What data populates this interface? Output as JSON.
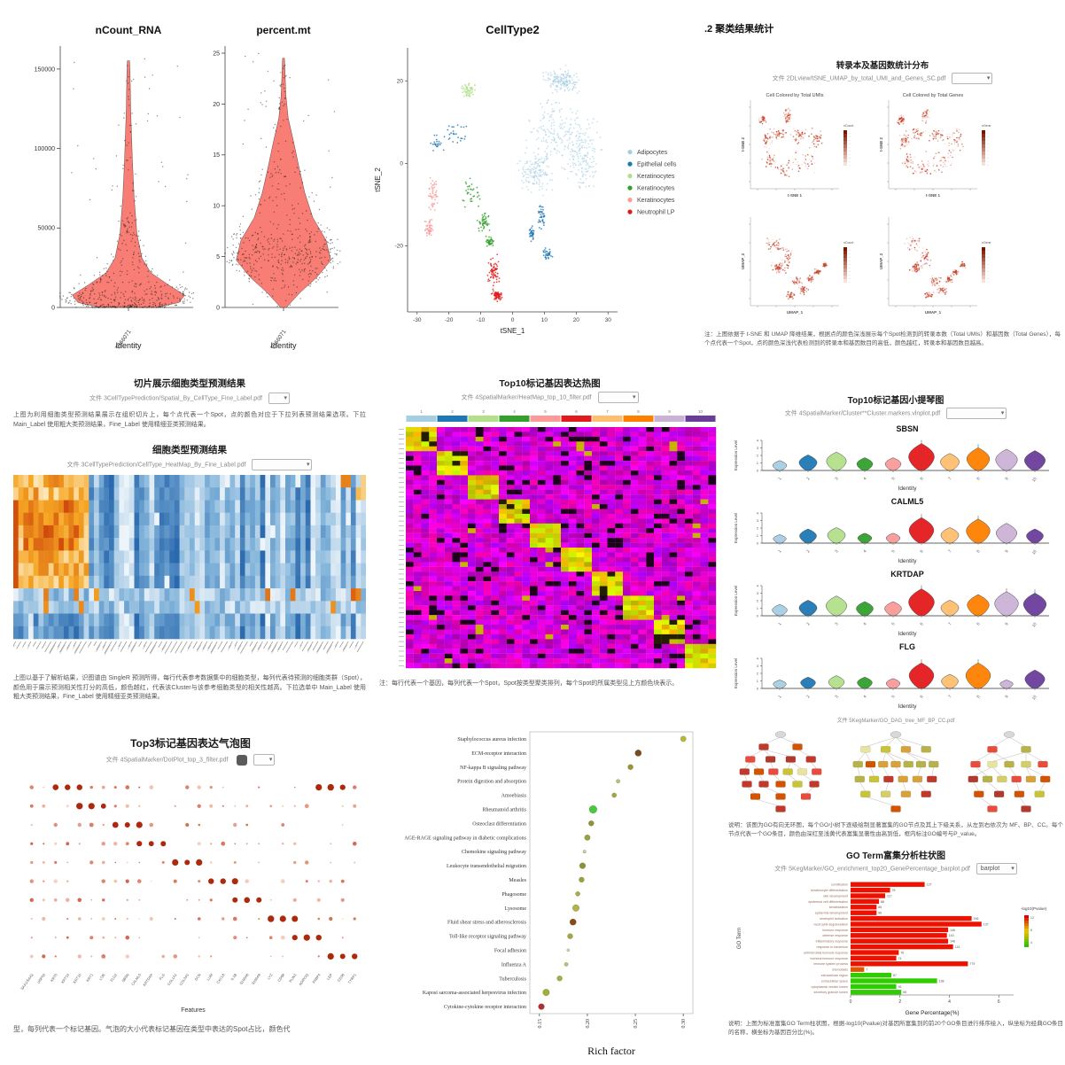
{
  "report": {
    "ui": {
      "chev": "▾"
    },
    "c": {
      "heading": ".2 聚类结果统计",
      "subtitle": "转录本及基因数统计分布",
      "file": "文件 2DLview/tSNE_UMAP_by_total_UMI_and_Genes_SC.pdf",
      "caption": "注：上图依据于 t-SNE 和 UMAP 降维结果，根据点的颜色深浅展示每个Spot检测到的转录本数（Total UMIs）和基因数（Total Genes），每个点代表一个Spot，点的颜色深浅代表检测到的转录本和基因数目的高低，颜色越红，转录本和基因数目越高。"
    },
    "d": {
      "title1": "切片展示细胞类型预测结果",
      "file1": "文件 3CellTypePrediction/Spatial_By_CellType_Fine_Label.pdf",
      "para1": "上图为利用细胞类型预测结果展示在组织切片上，每个点代表一个Spot，点的颜色对应于下拉列表预测结果选项。下拉 Main_Label 使用粗大类预测结果，Fine_Label 使用精细亚类预测结果。",
      "title2": "细胞类型预测结果",
      "file2": "文件 3CellTypePrediction/CellType_HeatMap_By_Fine_Label.pdf",
      "caption": "上图以基于了解析结果，识图谱由 SingleR 预测所得，每行代表参考数据集中的细胞类型，每列代表待预测的细胞类群（Spot），颜色用于展示预测相关性打分的高低，颜色越红，代表该Cluster与该参考细胞类型的相关性越高。下拉选单中 Main_Label 使用粗大类预测结果，Fine_Label 使用精细亚类预测结果。"
    },
    "e": {
      "title": "Top10标记基因表达热图",
      "file": "文件 4SpatialMarker/HeatMap_top_10_filter.pdf",
      "caption": "注：每行代表一个基因，每列代表一个Spot，Spot按类型聚类排列，每个Spot的所属类型见上方颜色块表示。"
    },
    "f": {
      "title": "Top10标记基因小提琴图",
      "file": "文件 4SpatialMarker/Cluster**Cluster.markers.vlnplot.pdf"
    },
    "g": {
      "title": "Top3标记基因表达气泡图",
      "file": "文件 4SpatialMarker/DotPlot_top_3_filter.pdf",
      "caption": "型，每列代表一个标记基因。气泡的大小代表标记基因在类型中表达的Spot占比，颜色代"
    },
    "i": {
      "tree_file": "文件 5KegMarker/GO_DAG_tree_MF_BP_CC.pdf",
      "tree_caption": "说明：该图为GO有向无环图，每个GO小树下逐级绘制显著富集的GO节点及其上下级关系，从左到右依次为 MF、BP、CC。每个节点代表一个GO条目，颜色由深红至浅黄代表富集显著性由高到低，框内标注GO编号与P_value。",
      "bar_title": "GO Term富集分析柱状图",
      "bar_file": "文件 5KegMarker/GO_enrichment_top20_GenePercentage_barplot.pdf",
      "bar_dd": "barplot",
      "bar_caption": "说明：上图为标准富集GO Term柱状图，根据-log10(Pvalue)对基因所富集到的前20个GO条目进行排序绘入，纵坐标为经典GO条目的名称，横坐标为基因百分比(%)。"
    }
  },
  "chart_data": [
    {
      "type": "violin-qc",
      "xlabel": "Identity",
      "sample": "T366071",
      "fill": "#F8766D",
      "plots": [
        {
          "title": "nCount_RNA",
          "yticks": [
            "0",
            "50000",
            "100000",
            "150000"
          ],
          "ytick_vals": [
            0,
            50000,
            100000,
            150000
          ],
          "ymax": 160000,
          "top": 0.97,
          "profile": [
            [
              0,
              0.5
            ],
            [
              0.02,
              0.9
            ],
            [
              0.05,
              1.0
            ],
            [
              0.09,
              0.72
            ],
            [
              0.14,
              0.4
            ],
            [
              0.2,
              0.24
            ],
            [
              0.3,
              0.15
            ],
            [
              0.45,
              0.1
            ],
            [
              0.6,
              0.07
            ],
            [
              0.8,
              0.04
            ],
            [
              0.93,
              0.03
            ],
            [
              1,
              0.02
            ]
          ]
        },
        {
          "title": "percent.mt",
          "yticks": [
            "0",
            "5",
            "10",
            "15",
            "20",
            "25"
          ],
          "ytick_vals": [
            0,
            5,
            10,
            15,
            20,
            25
          ],
          "ymax": 25,
          "top": 0.98,
          "profile": [
            [
              0,
              0.06
            ],
            [
              0.06,
              0.35
            ],
            [
              0.12,
              0.7
            ],
            [
              0.19,
              1.0
            ],
            [
              0.27,
              0.9
            ],
            [
              0.36,
              0.62
            ],
            [
              0.46,
              0.45
            ],
            [
              0.56,
              0.33
            ],
            [
              0.66,
              0.22
            ],
            [
              0.76,
              0.1
            ],
            [
              0.85,
              0.05
            ],
            [
              1,
              0.02
            ]
          ]
        }
      ]
    },
    {
      "type": "tsne",
      "title": "CellType2",
      "xlabel": "tSNE_1",
      "ylabel": "tSNE_2",
      "xticks": [
        -30,
        -20,
        -10,
        0,
        10,
        20,
        30
      ],
      "yticks": [
        -20,
        0,
        20
      ],
      "xlim": [
        -33,
        33
      ],
      "ylim": [
        -36,
        28
      ],
      "clusters": [
        {
          "label": "Adipocytes",
          "color": "#A6CEE3",
          "n": 650,
          "blobs": [
            [
              14,
              8,
              8,
              8
            ],
            [
              7,
              -2,
              5,
              5
            ],
            [
              22,
              2,
              5,
              8
            ],
            [
              16,
              20,
              6,
              3
            ]
          ]
        },
        {
          "label": "Epithelial cells",
          "color": "#1F78B4",
          "n": 150,
          "blobs": [
            [
              -18,
              7,
              4,
              2.5
            ],
            [
              -24,
              5,
              2,
              2
            ],
            [
              9,
              -13,
              1.2,
              3
            ],
            [
              11,
              -22,
              1.5,
              1.5
            ],
            [
              6,
              -17,
              0.8,
              2
            ]
          ]
        },
        {
          "label": "Keratinocytes",
          "color": "#B2DF8A",
          "n": 55,
          "blobs": [
            [
              -14,
              18,
              2.2,
              1.8
            ]
          ]
        },
        {
          "label": "Keratinocytes",
          "color": "#33A02C",
          "n": 120,
          "blobs": [
            [
              -13,
              -7,
              3,
              3.5
            ],
            [
              -9,
              -14,
              1.8,
              2.5
            ],
            [
              -7,
              -19,
              1.2,
              1.5
            ]
          ]
        },
        {
          "label": "Keratinocytes",
          "color": "#FB9A99",
          "n": 95,
          "blobs": [
            [
              -25,
              -8,
              1.8,
              4.5
            ],
            [
              -26,
              -16,
              1.5,
              2.5
            ]
          ]
        },
        {
          "label": "Neutrophil LP",
          "color": "#E31A1C",
          "n": 130,
          "blobs": [
            [
              -6,
              -26,
              2,
              3.5
            ],
            [
              -5,
              -32,
              1.5,
              1.5
            ]
          ]
        }
      ]
    },
    {
      "type": "feature-grid",
      "point_color": "#c43c22",
      "subplots": [
        {
          "title": "Cell Colored by Total UMIs",
          "xlabel": "t-SNE 1",
          "ylabel": "t-SNE 2",
          "legend": "nCount",
          "shape": "tsne"
        },
        {
          "title": "Cell Colored by Total Genes",
          "xlabel": "t-SNE 1",
          "ylabel": "t-SNE 2",
          "legend": "nGene",
          "shape": "tsne"
        },
        {
          "title": "",
          "xlabel": "UMAP_1",
          "ylabel": "UMAP_2",
          "legend": "nCount",
          "shape": "umap"
        },
        {
          "title": "",
          "xlabel": "UMAP_1",
          "ylabel": "UMAP_2",
          "legend": "nGene",
          "shape": "umap"
        }
      ],
      "shapes": {
        "tsne": [
          [
            0.6,
            0.3,
            0.16,
            0.14
          ],
          [
            0.38,
            0.22,
            0.1,
            0.08
          ],
          [
            0.22,
            0.32,
            0.07,
            0.09
          ],
          [
            0.18,
            0.55,
            0.06,
            0.09
          ],
          [
            0.33,
            0.62,
            0.09,
            0.07
          ],
          [
            0.42,
            0.82,
            0.05,
            0.08
          ],
          [
            0.14,
            0.78,
            0.04,
            0.05
          ],
          [
            0.75,
            0.55,
            0.09,
            0.12
          ],
          [
            0.55,
            0.6,
            0.1,
            0.08
          ]
        ],
        "umap": [
          [
            0.28,
            0.7,
            0.11,
            0.09
          ],
          [
            0.42,
            0.55,
            0.06,
            0.09
          ],
          [
            0.34,
            0.44,
            0.08,
            0.06
          ],
          [
            0.52,
            0.28,
            0.07,
            0.06
          ],
          [
            0.6,
            0.18,
            0.06,
            0.05
          ],
          [
            0.45,
            0.12,
            0.05,
            0.04
          ],
          [
            0.68,
            0.3,
            0.04,
            0.04
          ],
          [
            0.76,
            0.38,
            0.035,
            0.03
          ],
          [
            0.84,
            0.46,
            0.03,
            0.03
          ],
          [
            0.3,
            0.42,
            0.05,
            0.05
          ]
        ]
      }
    },
    {
      "type": "pred-heatmap",
      "rows": 13,
      "cols": 70,
      "warm_cols": 15
    },
    {
      "type": "marker-heatmap",
      "blocks": 10,
      "cols_per_block": 4,
      "rows": 50,
      "cluster_ids": [
        "1",
        "2",
        "3",
        "4",
        "5",
        "6",
        "7",
        "8",
        "9",
        "10"
      ],
      "cluster_colors": [
        "#A6CEE3",
        "#1F78B4",
        "#B2DF8A",
        "#33A02C",
        "#FB9A99",
        "#E31A1C",
        "#FDBF6F",
        "#FF7F00",
        "#CAB2D6",
        "#6A3D9A"
      ]
    },
    {
      "type": "violin-rows",
      "ylabel": "Expression Level",
      "xlabel": "Identity",
      "yticks": [
        "0",
        "1",
        "2",
        "3",
        "4"
      ],
      "categories": [
        "1",
        "2",
        "3",
        "4",
        "5",
        "6",
        "7",
        "8",
        "9",
        "10"
      ],
      "colors": [
        "#A6CEE3",
        "#1F78B4",
        "#B2DF8A",
        "#33A02C",
        "#FB9A99",
        "#E31A1C",
        "#FDBF6F",
        "#FF7F00",
        "#CAB2D6",
        "#6A3D9A"
      ],
      "genes": [
        {
          "name": "SBSN",
          "v": [
            0.35,
            0.55,
            0.65,
            0.45,
            0.45,
            0.95,
            0.6,
            0.8,
            0.75,
            0.7
          ]
        },
        {
          "name": "CALML5",
          "v": [
            0.3,
            0.5,
            0.55,
            0.35,
            0.35,
            0.9,
            0.55,
            0.85,
            0.7,
            0.5
          ]
        },
        {
          "name": "KRTDAP",
          "v": [
            0.4,
            0.55,
            0.7,
            0.5,
            0.5,
            0.95,
            0.55,
            0.75,
            0.85,
            0.8
          ]
        },
        {
          "name": "FLG",
          "v": [
            0.3,
            0.4,
            0.45,
            0.4,
            0.35,
            0.9,
            0.5,
            0.9,
            0.3,
            0.65
          ]
        }
      ]
    },
    {
      "type": "dotplot",
      "rows": 10,
      "cols": 28,
      "xlabel": "Features",
      "dot_color_low": "#f5cbb8",
      "dot_color_high": "#b81f00",
      "features": [
        "SAA1/SAA2",
        "USP53",
        "KRT5",
        "KRT14",
        "KRT10",
        "KRT1",
        "LOR",
        "FLG2",
        "SBSN",
        "CALML5",
        "KRTDAP",
        "FLG",
        "COL1A1",
        "COL3A1",
        "DCN",
        "LUM",
        "CXCL8",
        "IL1B",
        "S100A8",
        "S100A9",
        "LYZ",
        "CD68",
        "PLIN1",
        "ADIPOQ",
        "FABP4",
        "LEP",
        "CD36",
        "TYRP1"
      ]
    },
    {
      "type": "kegg",
      "xlabel": "Rich factor",
      "xticks": [
        "0.15",
        "0.20",
        "0.25",
        "0.30"
      ],
      "xtick_vals": [
        0.15,
        0.2,
        0.25,
        0.3
      ],
      "xlim": [
        0.14,
        0.31
      ],
      "pathways": [
        {
          "name": "Staphylococcus aureus infection",
          "x": 0.3,
          "r": 3.2,
          "c": "#b5b836"
        },
        {
          "name": "ECM-receptor interaction",
          "x": 0.253,
          "r": 3.6,
          "c": "#7a4a20"
        },
        {
          "name": "NF-kappa B signaling pathway",
          "x": 0.245,
          "r": 3.0,
          "c": "#96992e"
        },
        {
          "name": "Protein digestion and absorption",
          "x": 0.232,
          "r": 2.2,
          "c": "#bcbf7c"
        },
        {
          "name": "Amoebiasis",
          "x": 0.228,
          "r": 2.6,
          "c": "#a3a643"
        },
        {
          "name": "Rheumatoid arthritis",
          "x": 0.206,
          "r": 4.4,
          "c": "#49c93f"
        },
        {
          "name": "Osteoclast differentiation",
          "x": 0.204,
          "r": 3.0,
          "c": "#8f9230"
        },
        {
          "name": "AGE-RAGE signaling pathway in diabetic complications",
          "x": 0.2,
          "r": 3.2,
          "c": "#9aa23a"
        },
        {
          "name": "Chemokine signaling pathway",
          "x": 0.197,
          "r": 1.8,
          "c": "#c9cca0"
        },
        {
          "name": "Leukocyte transendothelial migration",
          "x": 0.195,
          "r": 3.4,
          "c": "#8f9230"
        },
        {
          "name": "Measles",
          "x": 0.194,
          "r": 3.0,
          "c": "#9aa23a"
        },
        {
          "name": "Phagosome",
          "x": 0.19,
          "r": 2.6,
          "c": "#a8ab4a"
        },
        {
          "name": "Lysosome",
          "x": 0.188,
          "r": 3.8,
          "c": "#b0b347"
        },
        {
          "name": "Fluid shear stress and atherosclerosis",
          "x": 0.185,
          "r": 3.6,
          "c": "#8a4a18"
        },
        {
          "name": "Toll-like receptor signaling pathway",
          "x": 0.182,
          "r": 3.0,
          "c": "#a3a643"
        },
        {
          "name": "Focal adhesion",
          "x": 0.18,
          "r": 1.6,
          "c": "#cfd2a8"
        },
        {
          "name": "Influenza A",
          "x": 0.178,
          "r": 2.2,
          "c": "#bcbf7c"
        },
        {
          "name": "Tuberculosis",
          "x": 0.171,
          "r": 3.0,
          "c": "#a8ab4a"
        },
        {
          "name": "Kaposi sarcoma-associated herpesvirus infection",
          "x": 0.157,
          "r": 3.8,
          "c": "#9fb03a"
        },
        {
          "name": "Cytokine-cytokine receptor interaction",
          "x": 0.152,
          "r": 3.4,
          "c": "#b03030"
        }
      ]
    },
    {
      "type": "go-trees",
      "trees": [
        {
          "levels": [
            1,
            2,
            4,
            6,
            5,
            3,
            1
          ],
          "tone": "red"
        },
        {
          "levels": [
            1,
            4,
            7,
            6,
            4,
            1
          ],
          "tone": "yellow"
        },
        {
          "levels": [
            1,
            2,
            5,
            6,
            4,
            2
          ],
          "tone": "mix"
        }
      ],
      "node_red": [
        "#c0392b",
        "#b03a2e",
        "#d35400",
        "#e74c3c"
      ],
      "node_yellow": [
        "#d4ce6a",
        "#c9c437",
        "#e8e4a0",
        "#b8b24a",
        "#d9a13a"
      ]
    },
    {
      "type": "go-bar",
      "ylabel": "GO Term",
      "xlabel": "Gene Percentage(%)",
      "legend_title": "-log10(Pvalue)",
      "legend_ticks": [
        "12",
        "8",
        "4"
      ],
      "xticks": [
        0,
        2,
        4,
        6
      ],
      "xmax": 6.6,
      "terms": [
        "cornification",
        "keratinocyte differentiation",
        "skin development",
        "epidermal cell differentiation",
        "keratinization",
        "epidermis development",
        "neutrophil activation",
        "neutrophil degranulation",
        "immune response",
        "defense response",
        "inflammatory response",
        "response to bacterium",
        "antimicrobial humoral response",
        "humoral immune response",
        "immune system process",
        "chemotaxis",
        "extracellular region",
        "extracellular space",
        "cytoplasmic vesicle lumen",
        "secretory granule lumen"
      ],
      "values": [
        3.0,
        1.6,
        1.4,
        1.15,
        1.05,
        1.05,
        4.9,
        5.3,
        3.95,
        3.9,
        3.95,
        4.15,
        1.95,
        1.85,
        4.75,
        0.55,
        1.65,
        3.5,
        1.85,
        2.05
      ],
      "labels": [
        "127",
        "76",
        "117",
        "88",
        "86",
        "86",
        "196",
        "137",
        "146",
        "143",
        "148",
        "141",
        "76",
        "74",
        "779",
        "7",
        "87",
        "138",
        "92",
        "98"
      ],
      "colors": [
        "#ee1100",
        "#ee1100",
        "#ee1100",
        "#ee1100",
        "#ee1100",
        "#ee1100",
        "#ee1100",
        "#ee1100",
        "#ee1100",
        "#ee1100",
        "#ee1100",
        "#ee1100",
        "#ee1100",
        "#ee1100",
        "#ee1100",
        "#e05500",
        "#2fcc00",
        "#2fcc00",
        "#2fcc00",
        "#2fcc00"
      ]
    }
  ]
}
